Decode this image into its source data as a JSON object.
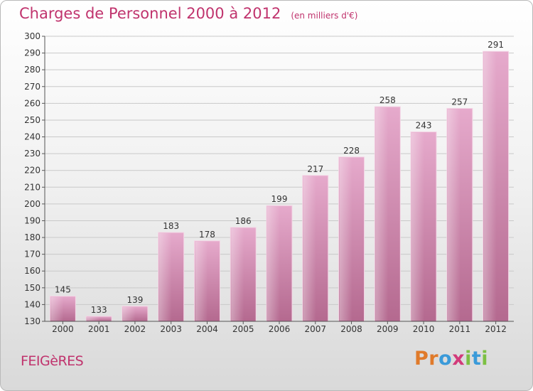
{
  "chart_data": {
    "type": "bar",
    "title": "Charges de Personnel 2000 à 2012",
    "subtitle": "(en milliers d'€)",
    "categories": [
      "2000",
      "2001",
      "2002",
      "2003",
      "2004",
      "2005",
      "2006",
      "2007",
      "2008",
      "2009",
      "2010",
      "2011",
      "2012"
    ],
    "values": [
      145,
      133,
      139,
      183,
      178,
      186,
      199,
      217,
      228,
      258,
      243,
      257,
      291
    ],
    "ylim": [
      130,
      300
    ],
    "yticks": [
      130,
      140,
      150,
      160,
      170,
      180,
      190,
      200,
      210,
      220,
      230,
      240,
      250,
      260,
      270,
      280,
      290,
      300
    ],
    "grid": true,
    "xlabel": "",
    "ylabel": ""
  },
  "place_name": "FEIGèRES",
  "logo": {
    "letters": [
      "P",
      "r",
      "o",
      "x",
      "i",
      "t",
      "i"
    ],
    "colors": [
      "#e07a2a",
      "#e07a2a",
      "#3a9ad9",
      "#d23a7a",
      "#7cc043",
      "#3a9ad9",
      "#7cc043"
    ]
  },
  "colors": {
    "bar_light": "#e4a8cb",
    "bar_dark": "#b5698f",
    "accent": "#c0336d"
  }
}
